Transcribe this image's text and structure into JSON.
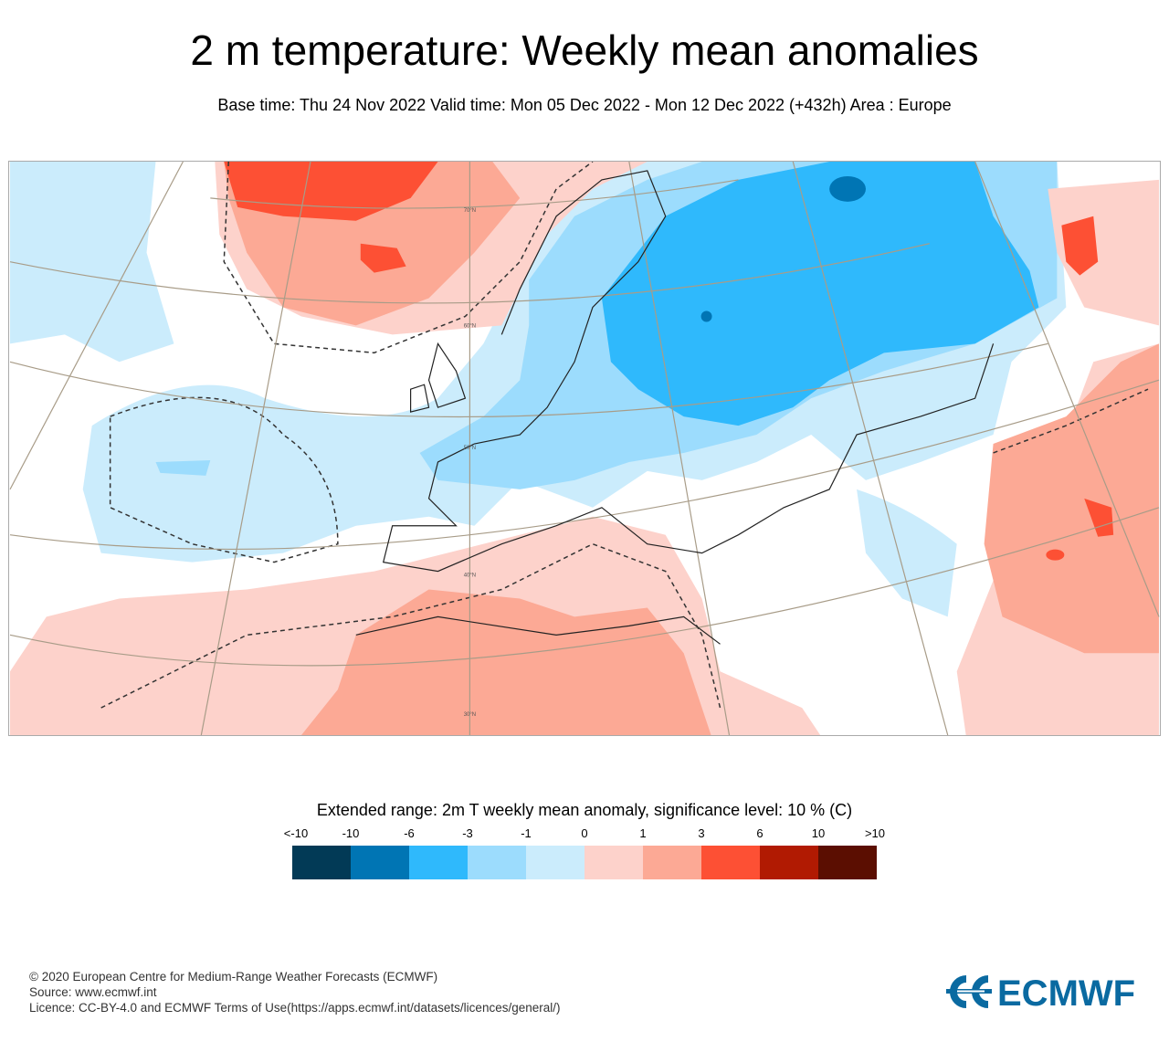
{
  "title": "2 m temperature: Weekly mean anomalies",
  "subtitle": "Base time: Thu 24 Nov 2022 Valid time: Mon 05 Dec 2022 - Mon 12 Dec 2022 (+432h) Area : Europe",
  "map": {
    "area": "Europe",
    "latitude_labels": [
      "70°N",
      "60°N",
      "50°N",
      "40°N",
      "30°N"
    ]
  },
  "legend": {
    "title": "Extended range: 2m T weekly mean anomaly, significance level: 10 % (C)",
    "ticks": [
      "<-10",
      "-10",
      "-6",
      "-3",
      "-1",
      "0",
      "1",
      "3",
      "6",
      "10",
      ">10"
    ],
    "colors": [
      "#023a56",
      "#0075b4",
      "#2fb9fc",
      "#9cdcfd",
      "#cbecfc",
      "#fdd2cb",
      "#fca995",
      "#fd5034",
      "#b11a02",
      "#5b0e01"
    ]
  },
  "footer": {
    "copyright": "© 2020 European Centre for Medium-Range Weather Forecasts (ECMWF)",
    "source": "Source: www.ecmwf.int",
    "licence": "Licence: CC-BY-4.0 and ECMWF Terms of Use(https://apps.ecmwf.int/datasets/licences/general/)",
    "logo_text": "ECMWF",
    "logo_color": "#0a6aa1"
  }
}
